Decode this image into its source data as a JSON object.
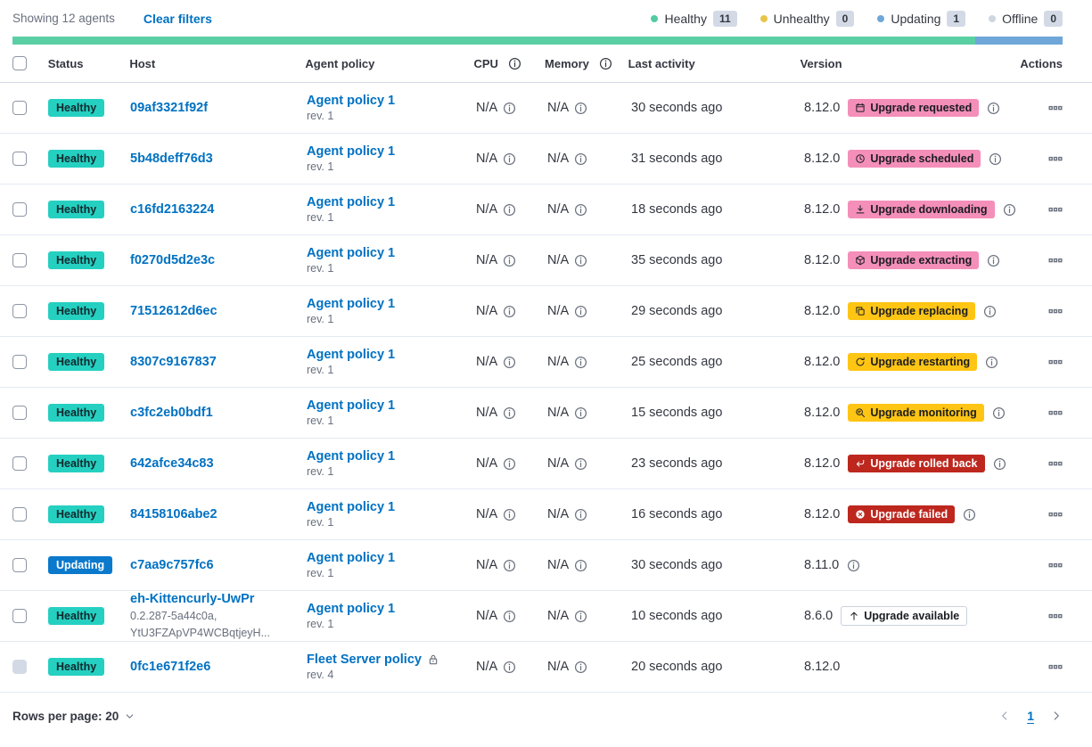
{
  "toolbar": {
    "showing_label": "Showing 12 agents",
    "clear_filters_label": "Clear filters",
    "legend": [
      {
        "name": "healthy",
        "label": "Healthy",
        "count": "11",
        "dot_color": "#54cba2"
      },
      {
        "name": "unhealthy",
        "label": "Unhealthy",
        "count": "0",
        "dot_color": "#e7c54b"
      },
      {
        "name": "updating",
        "label": "Updating",
        "count": "1",
        "dot_color": "#6fa7d8"
      },
      {
        "name": "offline",
        "label": "Offline",
        "count": "0",
        "dot_color": "#cfd6e0"
      }
    ]
  },
  "health_bar": {
    "segments": [
      {
        "status": "healthy",
        "fraction": 0.9167,
        "color": "#5bcfa4"
      },
      {
        "status": "updating",
        "fraction": 0.0833,
        "color": "#6fa7d8"
      }
    ]
  },
  "table": {
    "headers": {
      "status": "Status",
      "host": "Host",
      "policy": "Agent policy",
      "cpu": "CPU",
      "memory": "Memory",
      "last_activity": "Last activity",
      "version": "Version",
      "actions": "Actions"
    },
    "rows": [
      {
        "status": "Healthy",
        "status_variant": "healthy",
        "host": "09af3321f92f",
        "host_sub": [],
        "policy": "Agent policy 1",
        "policy_rev": "rev. 1",
        "policy_locked": false,
        "cpu": "N/A",
        "memory": "N/A",
        "last_activity": "30 seconds ago",
        "version": "8.12.0",
        "upgrade": {
          "label": "Upgrade requested",
          "variant": "pink",
          "icon": "calendar-icon"
        },
        "version_info": true,
        "checkbox_disabled": false
      },
      {
        "status": "Healthy",
        "status_variant": "healthy",
        "host": "5b48deff76d3",
        "host_sub": [],
        "policy": "Agent policy 1",
        "policy_rev": "rev. 1",
        "policy_locked": false,
        "cpu": "N/A",
        "memory": "N/A",
        "last_activity": "31 seconds ago",
        "version": "8.12.0",
        "upgrade": {
          "label": "Upgrade scheduled",
          "variant": "pink",
          "icon": "clock-icon"
        },
        "version_info": true,
        "checkbox_disabled": false
      },
      {
        "status": "Healthy",
        "status_variant": "healthy",
        "host": "c16fd2163224",
        "host_sub": [],
        "policy": "Agent policy 1",
        "policy_rev": "rev. 1",
        "policy_locked": false,
        "cpu": "N/A",
        "memory": "N/A",
        "last_activity": "18 seconds ago",
        "version": "8.12.0",
        "upgrade": {
          "label": "Upgrade downloading",
          "variant": "pink",
          "icon": "download-icon"
        },
        "version_info": true,
        "checkbox_disabled": false
      },
      {
        "status": "Healthy",
        "status_variant": "healthy",
        "host": "f0270d5d2e3c",
        "host_sub": [],
        "policy": "Agent policy 1",
        "policy_rev": "rev. 1",
        "policy_locked": false,
        "cpu": "N/A",
        "memory": "N/A",
        "last_activity": "35 seconds ago",
        "version": "8.12.0",
        "upgrade": {
          "label": "Upgrade extracting",
          "variant": "pink",
          "icon": "package-icon"
        },
        "version_info": true,
        "checkbox_disabled": false
      },
      {
        "status": "Healthy",
        "status_variant": "healthy",
        "host": "71512612d6ec",
        "host_sub": [],
        "policy": "Agent policy 1",
        "policy_rev": "rev. 1",
        "policy_locked": false,
        "cpu": "N/A",
        "memory": "N/A",
        "last_activity": "29 seconds ago",
        "version": "8.12.0",
        "upgrade": {
          "label": "Upgrade replacing",
          "variant": "yellow",
          "icon": "copy-icon"
        },
        "version_info": true,
        "checkbox_disabled": false
      },
      {
        "status": "Healthy",
        "status_variant": "healthy",
        "host": "8307c9167837",
        "host_sub": [],
        "policy": "Agent policy 1",
        "policy_rev": "rev. 1",
        "policy_locked": false,
        "cpu": "N/A",
        "memory": "N/A",
        "last_activity": "25 seconds ago",
        "version": "8.12.0",
        "upgrade": {
          "label": "Upgrade restarting",
          "variant": "yellow",
          "icon": "refresh-icon"
        },
        "version_info": true,
        "checkbox_disabled": false
      },
      {
        "status": "Healthy",
        "status_variant": "healthy",
        "host": "c3fc2eb0bdf1",
        "host_sub": [],
        "policy": "Agent policy 1",
        "policy_rev": "rev. 1",
        "policy_locked": false,
        "cpu": "N/A",
        "memory": "N/A",
        "last_activity": "15 seconds ago",
        "version": "8.12.0",
        "upgrade": {
          "label": "Upgrade monitoring",
          "variant": "yellow",
          "icon": "inspect-icon"
        },
        "version_info": true,
        "checkbox_disabled": false
      },
      {
        "status": "Healthy",
        "status_variant": "healthy",
        "host": "642afce34c83",
        "host_sub": [],
        "policy": "Agent policy 1",
        "policy_rev": "rev. 1",
        "policy_locked": false,
        "cpu": "N/A",
        "memory": "N/A",
        "last_activity": "23 seconds ago",
        "version": "8.12.0",
        "upgrade": {
          "label": "Upgrade rolled back",
          "variant": "red",
          "icon": "return-icon"
        },
        "version_info": true,
        "checkbox_disabled": false
      },
      {
        "status": "Healthy",
        "status_variant": "healthy",
        "host": "84158106abe2",
        "host_sub": [],
        "policy": "Agent policy 1",
        "policy_rev": "rev. 1",
        "policy_locked": false,
        "cpu": "N/A",
        "memory": "N/A",
        "last_activity": "16 seconds ago",
        "version": "8.12.0",
        "upgrade": {
          "label": "Upgrade failed",
          "variant": "red",
          "icon": "error-icon"
        },
        "version_info": true,
        "checkbox_disabled": false
      },
      {
        "status": "Updating",
        "status_variant": "updating",
        "host": "c7aa9c757fc6",
        "host_sub": [],
        "policy": "Agent policy 1",
        "policy_rev": "rev. 1",
        "policy_locked": false,
        "cpu": "N/A",
        "memory": "N/A",
        "last_activity": "30 seconds ago",
        "version": "8.11.0",
        "upgrade": null,
        "version_info": true,
        "checkbox_disabled": false
      },
      {
        "status": "Healthy",
        "status_variant": "healthy",
        "host": "eh-Kittencurly-UwPr",
        "host_sub": [
          "0.2.287-5a44c0a,",
          "YtU3FZApVP4WCBqtjeyH..."
        ],
        "policy": "Agent policy 1",
        "policy_rev": "rev. 1",
        "policy_locked": false,
        "cpu": "N/A",
        "memory": "N/A",
        "last_activity": "10 seconds ago",
        "version": "8.6.0",
        "upgrade": {
          "label": "Upgrade available",
          "variant": "outline",
          "icon": "arrow-up-icon"
        },
        "version_info": false,
        "checkbox_disabled": false
      },
      {
        "status": "Healthy",
        "status_variant": "healthy",
        "host": "0fc1e671f2e6",
        "host_sub": [],
        "policy": "Fleet Server policy",
        "policy_rev": "rev. 4",
        "policy_locked": true,
        "cpu": "N/A",
        "memory": "N/A",
        "last_activity": "20 seconds ago",
        "version": "8.12.0",
        "upgrade": null,
        "version_info": false,
        "checkbox_disabled": true
      }
    ]
  },
  "footer": {
    "rows_per_page_label": "Rows per page: 20",
    "page": "1"
  },
  "palette": {
    "link": "#0071c2",
    "healthy_badge": "#25d0c1",
    "updating_badge": "#0b79cc",
    "upgrade_pink": "#f48fb9",
    "upgrade_yellow": "#fec514",
    "upgrade_red": "#bd271e",
    "bar_healthy": "#5bcfa4",
    "bar_updating": "#6fa7d8",
    "count_badge_bg": "#d3dae6"
  }
}
